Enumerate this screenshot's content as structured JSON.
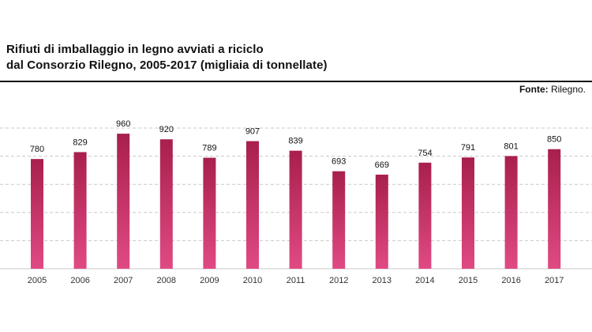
{
  "header": {
    "title_line1": "Rifiuti di imballaggio in legno avviati a riciclo",
    "title_line2": "dal Consorzio Rilegno, 2005-2017 (migliaia di tonnellate)",
    "source_prefix": "Fonte:",
    "source_name": "Rilegno."
  },
  "colors": {
    "bar_top": "#a81f4c",
    "bar_bottom": "#e04a84",
    "grid": "#c8c8c8",
    "rule": "#111111"
  },
  "chart_data": {
    "type": "bar",
    "title": "Rifiuti di imballaggio in legno avviati a riciclo dal Consorzio Rilegno, 2005-2017 (migliaia di tonnellate)",
    "categories": [
      "2005",
      "2006",
      "2007",
      "2008",
      "2009",
      "2010",
      "2011",
      "2012",
      "2013",
      "2014",
      "2015",
      "2016",
      "2017"
    ],
    "values": [
      780,
      829,
      960,
      920,
      789,
      907,
      839,
      693,
      669,
      754,
      791,
      801,
      850
    ],
    "xlabel": "",
    "ylabel": "",
    "ylim": [
      0,
      1000
    ],
    "grid": true,
    "legend": "none"
  }
}
